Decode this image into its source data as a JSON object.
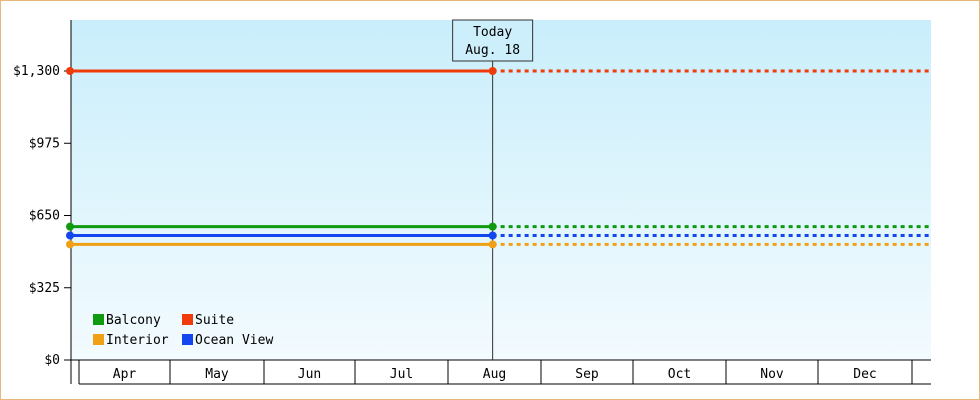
{
  "chart_data": {
    "type": "line",
    "title": "",
    "xlabel": "",
    "ylabel": "",
    "categories": [
      "Apr",
      "May",
      "Jun",
      "Jul",
      "Aug",
      "Sep",
      "Oct",
      "Nov",
      "Dec"
    ],
    "y_ticks": [
      {
        "value": 0,
        "label": "$0"
      },
      {
        "value": 325,
        "label": "$325"
      },
      {
        "value": 650,
        "label": "$650"
      },
      {
        "value": 975,
        "label": "$975"
      },
      {
        "value": 1300,
        "label": "$1,300"
      }
    ],
    "ylim": [
      0,
      1300
    ],
    "today": {
      "label": "Today",
      "date": "Aug. 18",
      "x": 4.48
    },
    "series": [
      {
        "name": "Suite",
        "color": "#f03c0a",
        "x_start": 0,
        "y": 1300
      },
      {
        "name": "Balcony",
        "color": "#0f9a0f",
        "x_start": 0,
        "y": 600
      },
      {
        "name": "Ocean View",
        "color": "#1446f0",
        "x_start": 0,
        "y": 560
      },
      {
        "name": "Interior",
        "color": "#f0a014",
        "x_start": 0,
        "y": 520
      }
    ],
    "legend": {
      "placement": "bottom-left",
      "rows": [
        [
          "Balcony",
          "Suite"
        ],
        [
          "Interior",
          "Ocean View"
        ]
      ]
    },
    "grid": false,
    "background": {
      "top": "#c9eefb",
      "bottom": "#f3fbfe"
    }
  }
}
